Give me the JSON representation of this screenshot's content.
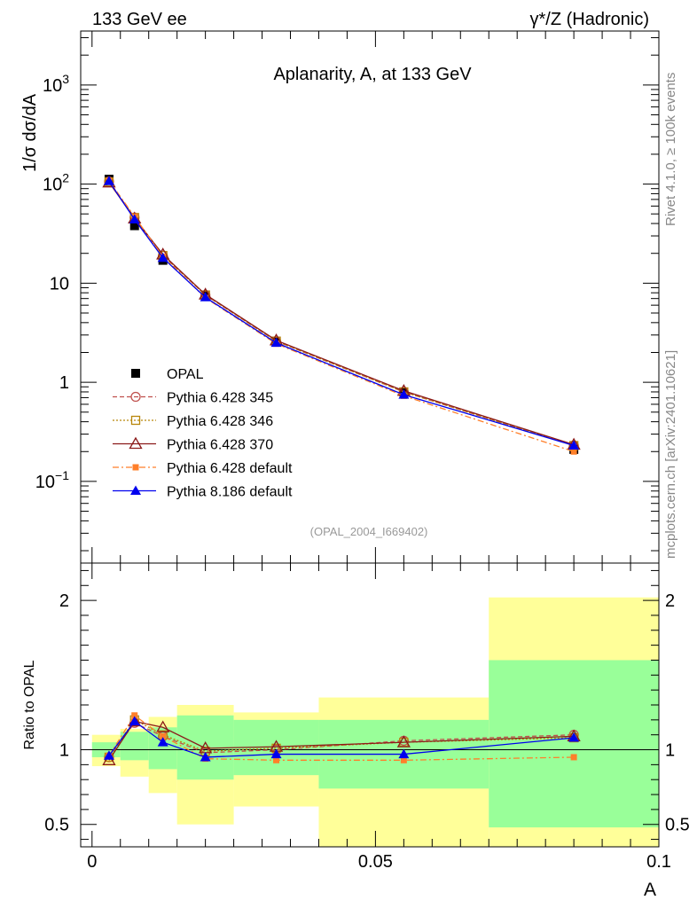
{
  "header": {
    "left": "133 GeV ee",
    "right": "γ*/Z (Hadronic)"
  },
  "side_labels": {
    "rivet": "Rivet 4.1.0, ≥ 100k events",
    "mcplots": "mcplots.cern.ch [arXiv:2401.10621]"
  },
  "chart_data": [
    {
      "type": "line",
      "title": "Aplanarity, A, at 133 GeV",
      "analysis_tag": "(OPAL_2004_I669402)",
      "ylabel": "1/σ  dσ/dA",
      "yscale": "log",
      "ylim": [
        0.015,
        3500
      ],
      "xlim": [
        -0.002,
        0.1
      ],
      "ytick_labels": [
        "10^-1",
        "1",
        "10",
        "10^2",
        "10^3"
      ],
      "legend_placement": "lower-left",
      "x": [
        0.003,
        0.0075,
        0.0125,
        0.02,
        0.0325,
        0.055,
        0.085
      ],
      "series": [
        {
          "name": "OPAL",
          "color": "#000000",
          "marker": "square",
          "values": [
            112,
            38,
            17,
            7.6,
            2.6,
            0.8,
            0.21
          ]
        },
        {
          "name": "Pythia 6.428 345",
          "color": "#c0504d",
          "marker": "open-circle",
          "dash": "5,3",
          "values": [
            106,
            46,
            19,
            7.6,
            2.6,
            0.8,
            0.23
          ]
        },
        {
          "name": "Pythia 6.428 346",
          "color": "#b8860b",
          "marker": "open-square",
          "dash": "2,2",
          "values": [
            105,
            46,
            19,
            7.6,
            2.6,
            0.8,
            0.23
          ]
        },
        {
          "name": "Pythia 6.428 370",
          "color": "#8b1a1a",
          "marker": "open-triangle",
          "dash": "",
          "values": [
            104,
            45,
            19.5,
            7.7,
            2.65,
            0.82,
            0.235
          ]
        },
        {
          "name": "Pythia 6.428 default",
          "color": "#ff7f2a",
          "marker": "small-square",
          "dash": "7,3,2,3",
          "values": [
            108,
            47,
            18.5,
            7.1,
            2.45,
            0.73,
            0.2
          ]
        },
        {
          "name": "Pythia 8.186 default",
          "color": "#0000ee",
          "marker": "triangle",
          "dash": "",
          "values": [
            107,
            44,
            18,
            7.2,
            2.5,
            0.75,
            0.23
          ]
        }
      ]
    },
    {
      "type": "line",
      "ylabel": "Ratio to OPAL",
      "xlabel": "A",
      "ylim": [
        0.35,
        2.25
      ],
      "xlim": [
        -0.002,
        0.1
      ],
      "ytick_labels": [
        "0.5",
        "1",
        "2"
      ],
      "xtick_labels": [
        "0",
        "0.05",
        "0.1"
      ],
      "reference_line": 1,
      "bands": [
        {
          "x": [
            0.0,
            0.005
          ],
          "inner": [
            0.95,
            1.05
          ],
          "outer": [
            0.89,
            1.1
          ]
        },
        {
          "x": [
            0.005,
            0.01
          ],
          "inner": [
            0.93,
            1.12
          ],
          "outer": [
            0.82,
            1.14
          ]
        },
        {
          "x": [
            0.01,
            0.015
          ],
          "inner": [
            0.87,
            1.15
          ],
          "outer": [
            0.71,
            1.22
          ]
        },
        {
          "x": [
            0.015,
            0.025
          ],
          "inner": [
            0.8,
            1.23
          ],
          "outer": [
            0.5,
            1.3
          ]
        },
        {
          "x": [
            0.025,
            0.04
          ],
          "inner": [
            0.83,
            1.2
          ],
          "outer": [
            0.62,
            1.25
          ]
        },
        {
          "x": [
            0.04,
            0.07
          ],
          "inner": [
            0.74,
            1.2
          ],
          "outer": [
            0.35,
            1.35
          ]
        },
        {
          "x": [
            0.07,
            0.1
          ],
          "inner": [
            0.48,
            1.6
          ],
          "outer": [
            0.35,
            2.02
          ]
        }
      ],
      "x": [
        0.003,
        0.0075,
        0.0125,
        0.02,
        0.0325,
        0.055,
        0.085
      ],
      "series": [
        {
          "name": "Pythia 6.428 345",
          "color": "#c0504d",
          "marker": "open-circle",
          "dash": "5,3",
          "values": [
            0.95,
            1.18,
            1.09,
            0.98,
            1.0,
            1.06,
            1.1
          ]
        },
        {
          "name": "Pythia 6.428 346",
          "color": "#b8860b",
          "marker": "open-square",
          "dash": "2,2",
          "values": [
            0.95,
            1.2,
            1.1,
            0.99,
            1.01,
            1.05,
            1.08
          ]
        },
        {
          "name": "Pythia 6.428 370",
          "color": "#8b1a1a",
          "marker": "open-triangle",
          "dash": "",
          "values": [
            0.93,
            1.19,
            1.15,
            1.01,
            1.02,
            1.05,
            1.09
          ]
        },
        {
          "name": "Pythia 6.428 default",
          "color": "#ff7f2a",
          "marker": "small-square",
          "dash": "7,3,2,3",
          "values": [
            0.96,
            1.23,
            1.09,
            0.94,
            0.93,
            0.93,
            0.95
          ]
        },
        {
          "name": "Pythia 8.186 default",
          "color": "#0000ee",
          "marker": "triangle",
          "dash": "",
          "values": [
            0.96,
            1.19,
            1.05,
            0.95,
            0.97,
            0.97,
            1.08
          ]
        }
      ]
    }
  ]
}
